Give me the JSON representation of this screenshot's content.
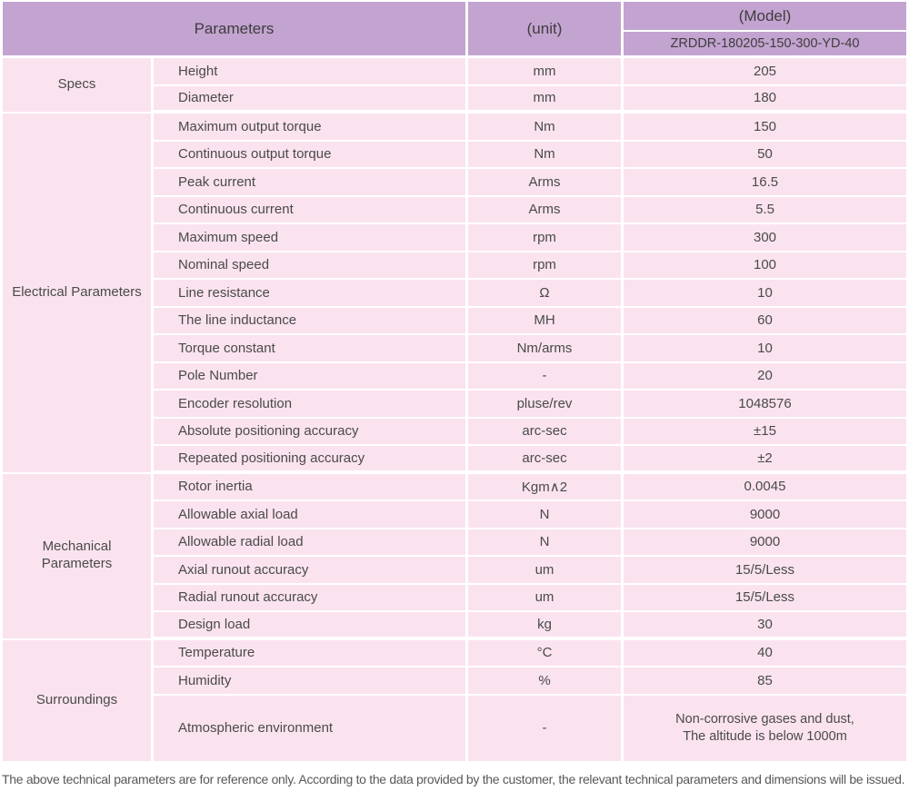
{
  "header": {
    "parameters_label": "Parameters",
    "unit_label": "(unit)",
    "model_label": "(Model)",
    "model_value": "ZRDDR-180205-150-300-YD-40"
  },
  "sections": [
    {
      "name": "Specs",
      "rows": [
        {
          "parameter": "Height",
          "unit": "mm",
          "value": "205"
        },
        {
          "parameter": "Diameter",
          "unit": "mm",
          "value": "180"
        }
      ]
    },
    {
      "name": "Electrical Parameters",
      "rows": [
        {
          "parameter": "Maximum output torque",
          "unit": "Nm",
          "value": "150"
        },
        {
          "parameter": "Continuous output torque",
          "unit": "Nm",
          "value": "50"
        },
        {
          "parameter": "Peak current",
          "unit": "Arms",
          "value": "16.5"
        },
        {
          "parameter": "Continuous current",
          "unit": "Arms",
          "value": "5.5"
        },
        {
          "parameter": "Maximum speed",
          "unit": "rpm",
          "value": "300"
        },
        {
          "parameter": "Nominal speed",
          "unit": "rpm",
          "value": "100"
        },
        {
          "parameter": "Line resistance",
          "unit": "Ω",
          "value": "10"
        },
        {
          "parameter": "The line inductance",
          "unit": "MH",
          "value": "60"
        },
        {
          "parameter": "Torque constant",
          "unit": "Nm/arms",
          "value": "10"
        },
        {
          "parameter": "Pole Number",
          "unit": "-",
          "value": "20"
        },
        {
          "parameter": "Encoder resolution",
          "unit": "pluse/rev",
          "value": "1048576"
        },
        {
          "parameter": "Absolute positioning accuracy",
          "unit": "arc-sec",
          "value": "±15"
        },
        {
          "parameter": "Repeated positioning accuracy",
          "unit": "arc-sec",
          "value": "±2"
        }
      ]
    },
    {
      "name": "Mechanical Parameters",
      "rows": [
        {
          "parameter": "Rotor inertia",
          "unit": "Kgm∧2",
          "value": "0.0045"
        },
        {
          "parameter": "Allowable axial load",
          "unit": "N",
          "value": "9000"
        },
        {
          "parameter": "Allowable radial load",
          "unit": "N",
          "value": "9000"
        },
        {
          "parameter": "Axial runout accuracy",
          "unit": "um",
          "value": "15/5/Less"
        },
        {
          "parameter": "Radial runout accuracy",
          "unit": "um",
          "value": "15/5/Less"
        },
        {
          "parameter": "Design load",
          "unit": "kg",
          "value": "30"
        }
      ]
    },
    {
      "name": "Surroundings",
      "rows": [
        {
          "parameter": "Temperature",
          "unit": "°C",
          "value": "40"
        },
        {
          "parameter": "Humidity",
          "unit": "%",
          "value": "85"
        },
        {
          "parameter": "Atmospheric environment",
          "unit": "-",
          "value": "Non-corrosive gases and dust,\nThe altitude is below 1000m"
        }
      ]
    }
  ],
  "footer_note": "The above technical parameters are for reference only. According to the data provided by the customer, the relevant technical parameters and dimensions will be issued.",
  "colors": {
    "header_bg": "#c3a3d0",
    "row_bg": "#fae3ef",
    "separator": "#ffffff",
    "text": "#4a4a4a"
  }
}
